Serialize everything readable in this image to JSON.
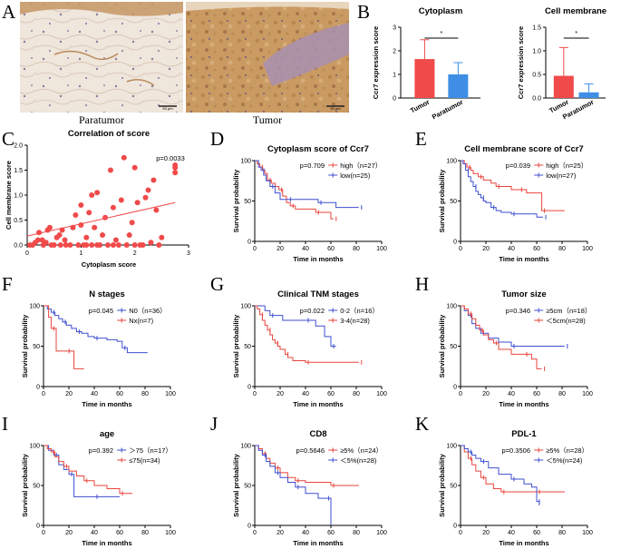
{
  "panels": {
    "A": "A",
    "B": "B",
    "C": "C",
    "D": "D",
    "E": "E",
    "F": "F",
    "G": "G",
    "H": "H",
    "I": "I",
    "J": "J",
    "K": "K"
  },
  "images": {
    "paratumor_caption": "Paratumor",
    "tumor_caption": "Tumor",
    "scalebar_label": "50 μm"
  },
  "colors": {
    "red": "#f04a4a",
    "blue": "#3e8ee6",
    "km_red": "#e8453c",
    "km_blue": "#3f4fd1",
    "tissue_para": "#efe6dc",
    "tissue_tumor": "#c99a62",
    "tissue_stroma": "#a88fb0"
  },
  "chart_data": [
    {
      "id": "B1",
      "type": "bar",
      "title": "Cytoplasm",
      "ylabel": "Ccr7 expression score",
      "categories": [
        "Tumor",
        "Paratumor"
      ],
      "values": [
        1.65,
        1.0
      ],
      "errors": [
        0.82,
        0.5
      ],
      "ylim": [
        0,
        3
      ],
      "yticks": [
        "0",
        "1",
        "2",
        "3"
      ],
      "significance": "*"
    },
    {
      "id": "B2",
      "type": "bar",
      "title": "Cell membrane",
      "ylabel": "Ccr7 expression score",
      "categories": [
        "Tumor",
        "Paratumor"
      ],
      "values": [
        0.47,
        0.12
      ],
      "errors": [
        0.6,
        0.18
      ],
      "ylim": [
        0,
        1.5
      ],
      "yticks": [
        "0.0",
        "0.5",
        "1.0",
        "1.5"
      ],
      "significance": "*"
    },
    {
      "id": "C",
      "type": "scatter",
      "title": "Correlation of score",
      "xlabel": "Cytoplasm score",
      "ylabel": "Cell membrane score",
      "annotation": "p=0.0033",
      "xlim": [
        0,
        3
      ],
      "ylim": [
        0,
        2
      ],
      "xticks": [
        "0",
        "1",
        "2",
        "3"
      ],
      "yticks": [
        "0.0",
        "0.5",
        "1.0",
        "1.5",
        "2.0"
      ],
      "points": [
        [
          0.05,
          0
        ],
        [
          0.1,
          0
        ],
        [
          0.15,
          0.05
        ],
        [
          0.2,
          0.1
        ],
        [
          0.22,
          0.25
        ],
        [
          0.28,
          0.1
        ],
        [
          0.3,
          0
        ],
        [
          0.35,
          0.05
        ],
        [
          0.38,
          0.3
        ],
        [
          0.42,
          0.35
        ],
        [
          0.45,
          0
        ],
        [
          0.5,
          0
        ],
        [
          0.55,
          0.15
        ],
        [
          0.6,
          0.2
        ],
        [
          0.62,
          0
        ],
        [
          0.65,
          0.3
        ],
        [
          0.7,
          0.1
        ],
        [
          0.72,
          0
        ],
        [
          0.8,
          0
        ],
        [
          0.85,
          0.35
        ],
        [
          0.9,
          0.6
        ],
        [
          0.95,
          0
        ],
        [
          1.0,
          0.4
        ],
        [
          1.0,
          0.8
        ],
        [
          1.05,
          0
        ],
        [
          1.1,
          0.15
        ],
        [
          1.1,
          0
        ],
        [
          1.15,
          0.65
        ],
        [
          1.2,
          0
        ],
        [
          1.2,
          1.0
        ],
        [
          1.25,
          0.35
        ],
        [
          1.3,
          1.05
        ],
        [
          1.3,
          0
        ],
        [
          1.35,
          0
        ],
        [
          1.4,
          0.2
        ],
        [
          1.45,
          0.55
        ],
        [
          1.5,
          0
        ],
        [
          1.55,
          1.5
        ],
        [
          1.6,
          0.75
        ],
        [
          1.6,
          0
        ],
        [
          1.65,
          0.1
        ],
        [
          1.7,
          0
        ],
        [
          1.75,
          0.9
        ],
        [
          1.8,
          1.75
        ],
        [
          1.85,
          0
        ],
        [
          1.9,
          0.2
        ],
        [
          1.95,
          0.45
        ],
        [
          2.0,
          0
        ],
        [
          2.0,
          1.55
        ],
        [
          2.05,
          0.85
        ],
        [
          2.1,
          0
        ],
        [
          2.15,
          0
        ],
        [
          2.2,
          0.95
        ],
        [
          2.25,
          1.1
        ],
        [
          2.3,
          0.05
        ],
        [
          2.35,
          1.3
        ],
        [
          2.4,
          0.7
        ],
        [
          2.45,
          0
        ],
        [
          2.5,
          0.15
        ],
        [
          2.75,
          1.45
        ],
        [
          2.75,
          1.55
        ],
        [
          2.75,
          1.6
        ]
      ],
      "fit": {
        "x": [
          0,
          2.75
        ],
        "y": [
          0.18,
          0.85
        ]
      }
    },
    {
      "id": "D",
      "type": "line",
      "title": "Cytoplasm score of Ccr7",
      "xlabel": "Time in months",
      "ylabel": "Survival probability",
      "annotation": "p=0.709",
      "xlim": [
        0,
        100
      ],
      "ylim": [
        0,
        100
      ],
      "xticks": [
        "0",
        "20",
        "40",
        "60",
        "80",
        "100"
      ],
      "yticks": [
        "0",
        "50",
        "100"
      ],
      "series": [
        {
          "name": "high（n=27）",
          "color": "red",
          "x": [
            0,
            2,
            4,
            6,
            8,
            10,
            13,
            16,
            19,
            22,
            25,
            28,
            32,
            40,
            48,
            55,
            60,
            62
          ],
          "y": [
            100,
            96,
            92,
            88,
            84,
            76,
            72,
            68,
            64,
            56,
            48,
            44,
            40,
            40,
            36,
            36,
            28,
            28
          ]
        },
        {
          "name": "low(n=25)",
          "color": "blue",
          "x": [
            0,
            3,
            5,
            7,
            9,
            12,
            16,
            20,
            26,
            30,
            42,
            50,
            60,
            64,
            82
          ],
          "y": [
            100,
            92,
            88,
            82,
            75,
            68,
            60,
            52,
            52,
            52,
            52,
            48,
            48,
            42,
            42
          ]
        }
      ]
    },
    {
      "id": "E",
      "type": "line",
      "title": "Cell membrane score of Ccr7",
      "xlabel": "Time in months",
      "ylabel": "Survival probability",
      "annotation": "p=0.039",
      "xlim": [
        0,
        100
      ],
      "ylim": [
        0,
        100
      ],
      "xticks": [
        "0",
        "20",
        "40",
        "60",
        "80",
        "100"
      ],
      "yticks": [
        "0",
        "50",
        "100"
      ],
      "series": [
        {
          "name": "high（n=25）",
          "color": "red",
          "x": [
            0,
            3,
            5,
            8,
            10,
            14,
            18,
            24,
            28,
            34,
            40,
            46,
            52,
            60,
            64,
            68,
            82
          ],
          "y": [
            100,
            96,
            92,
            88,
            84,
            80,
            76,
            72,
            68,
            68,
            64,
            64,
            60,
            60,
            38,
            38,
            38
          ]
        },
        {
          "name": "low(n=27)",
          "color": "blue",
          "x": [
            0,
            2,
            4,
            6,
            8,
            10,
            12,
            14,
            16,
            18,
            20,
            24,
            28,
            32,
            40,
            50,
            60,
            65
          ],
          "y": [
            100,
            96,
            88,
            80,
            74,
            68,
            62,
            58,
            54,
            50,
            48,
            42,
            38,
            36,
            34,
            34,
            30,
            30
          ]
        }
      ]
    },
    {
      "id": "F",
      "type": "line",
      "title": "N stages",
      "xlabel": "Time in months",
      "ylabel": "Survival probability",
      "annotation": "p=0.045",
      "xlim": [
        0,
        100
      ],
      "ylim": [
        0,
        100
      ],
      "xticks": [
        "0",
        "20",
        "40",
        "60",
        "80",
        "100"
      ],
      "yticks": [
        "0",
        "50",
        "100"
      ],
      "series": [
        {
          "name": "N0（n=36）",
          "color": "blue",
          "x": [
            0,
            3,
            6,
            9,
            12,
            15,
            18,
            22,
            26,
            30,
            35,
            40,
            50,
            58,
            62,
            66,
            82
          ],
          "y": [
            100,
            96,
            92,
            88,
            84,
            80,
            76,
            72,
            68,
            66,
            62,
            60,
            58,
            56,
            48,
            42,
            42
          ]
        },
        {
          "name": "Nx(n=7)",
          "color": "red",
          "x": [
            0,
            4,
            6,
            10,
            14,
            18,
            24,
            32
          ],
          "y": [
            100,
            86,
            72,
            44,
            44,
            44,
            22,
            22
          ]
        }
      ]
    },
    {
      "id": "G",
      "type": "line",
      "title": "Clinical TNM stages",
      "xlabel": "Time in months",
      "ylabel": "Survival probability",
      "annotation": "p=0.022",
      "xlim": [
        0,
        100
      ],
      "ylim": [
        0,
        100
      ],
      "xticks": [
        "0",
        "20",
        "40",
        "60",
        "80",
        "100"
      ],
      "yticks": [
        "0",
        "50",
        "100"
      ],
      "series": [
        {
          "name": "0-2（n=16）",
          "color": "blue",
          "x": [
            0,
            8,
            12,
            22,
            30,
            40,
            48,
            55,
            60,
            64
          ],
          "y": [
            100,
            94,
            88,
            82,
            82,
            82,
            75,
            62,
            50,
            50
          ]
        },
        {
          "name": "3-4(n=28)",
          "color": "red",
          "x": [
            0,
            2,
            4,
            6,
            8,
            10,
            12,
            14,
            16,
            18,
            20,
            24,
            26,
            30,
            40,
            50,
            60,
            82
          ],
          "y": [
            100,
            96,
            89,
            82,
            76,
            70,
            64,
            58,
            54,
            50,
            46,
            40,
            36,
            32,
            30,
            30,
            30,
            30
          ]
        }
      ]
    },
    {
      "id": "H",
      "type": "line",
      "title": "Tumor size",
      "xlabel": "Time in months",
      "ylabel": "Survival probability",
      "annotation": "p=0.346",
      "xlim": [
        0,
        100
      ],
      "ylim": [
        0,
        100
      ],
      "xticks": [
        "0",
        "20",
        "40",
        "60",
        "80",
        "100"
      ],
      "yticks": [
        "0",
        "50",
        "100"
      ],
      "series": [
        {
          "name": "≥5cm（n=18）",
          "color": "blue",
          "x": [
            0,
            3,
            6,
            9,
            12,
            16,
            22,
            30,
            40,
            50,
            60,
            82
          ],
          "y": [
            100,
            94,
            88,
            78,
            72,
            66,
            60,
            55,
            50,
            50,
            50,
            50
          ]
        },
        {
          "name": "＜5cm(n=28)",
          "color": "red",
          "x": [
            0,
            3,
            6,
            9,
            12,
            15,
            18,
            22,
            26,
            30,
            40,
            50,
            56,
            60,
            64
          ],
          "y": [
            100,
            96,
            90,
            84,
            76,
            70,
            64,
            58,
            54,
            46,
            40,
            40,
            34,
            22,
            22
          ]
        }
      ]
    },
    {
      "id": "I",
      "type": "line",
      "title": "age",
      "xlabel": "Time in months",
      "ylabel": "Survival probability",
      "annotation": "p=0.392",
      "xlim": [
        0,
        100
      ],
      "ylim": [
        0,
        100
      ],
      "xticks": [
        "0",
        "20",
        "40",
        "60",
        "80",
        "100"
      ],
      "yticks": [
        "0",
        "50",
        "100"
      ],
      "series": [
        {
          "name": "＞75（n=17）",
          "color": "blue",
          "x": [
            0,
            4,
            8,
            12,
            16,
            20,
            24,
            30,
            40,
            50,
            60
          ],
          "y": [
            100,
            94,
            88,
            76,
            70,
            64,
            36,
            36,
            36,
            36,
            36
          ]
        },
        {
          "name": "≤75(n=34)",
          "color": "red",
          "x": [
            0,
            3,
            6,
            9,
            12,
            16,
            20,
            26,
            32,
            40,
            50,
            60,
            70
          ],
          "y": [
            100,
            96,
            92,
            86,
            80,
            74,
            68,
            62,
            56,
            50,
            46,
            40,
            40
          ]
        }
      ]
    },
    {
      "id": "J",
      "type": "line",
      "title": "CD8",
      "xlabel": "Time in months",
      "ylabel": "Survival probability",
      "annotation": "p=0.5646",
      "xlim": [
        0,
        100
      ],
      "ylim": [
        0,
        100
      ],
      "xticks": [
        "0",
        "20",
        "40",
        "60",
        "80",
        "100"
      ],
      "yticks": [
        "0",
        "50",
        "100"
      ],
      "series": [
        {
          "name": "≥5%（n=24）",
          "color": "red",
          "x": [
            0,
            3,
            6,
            9,
            12,
            16,
            20,
            26,
            32,
            40,
            50,
            60,
            82
          ],
          "y": [
            100,
            96,
            90,
            84,
            78,
            72,
            66,
            60,
            56,
            54,
            54,
            50,
            50
          ]
        },
        {
          "name": "＜5%(n=28)",
          "color": "blue",
          "x": [
            0,
            3,
            6,
            9,
            12,
            16,
            20,
            26,
            32,
            40,
            50,
            56,
            60
          ],
          "y": [
            100,
            94,
            88,
            80,
            74,
            66,
            60,
            54,
            48,
            40,
            34,
            34,
            0
          ]
        }
      ]
    },
    {
      "id": "K",
      "type": "line",
      "title": "PDL-1",
      "xlabel": "Time in months",
      "ylabel": "Survival probability",
      "annotation": "p=0.3506",
      "xlim": [
        0,
        100
      ],
      "ylim": [
        0,
        100
      ],
      "xticks": [
        "0",
        "20",
        "40",
        "60",
        "80",
        "100"
      ],
      "yticks": [
        "0",
        "50",
        "100"
      ],
      "series": [
        {
          "name": "≥5%（n=28）",
          "color": "red",
          "x": [
            0,
            3,
            6,
            9,
            12,
            16,
            20,
            26,
            32,
            40,
            50,
            60,
            82
          ],
          "y": [
            100,
            92,
            84,
            76,
            68,
            60,
            52,
            46,
            42,
            42,
            42,
            42,
            42
          ]
        },
        {
          "name": "＜5%(n=24)",
          "color": "blue",
          "x": [
            0,
            3,
            6,
            9,
            12,
            16,
            22,
            30,
            40,
            50,
            56,
            60,
            62
          ],
          "y": [
            100,
            96,
            92,
            88,
            84,
            80,
            72,
            64,
            58,
            52,
            48,
            30,
            25
          ]
        }
      ]
    }
  ]
}
